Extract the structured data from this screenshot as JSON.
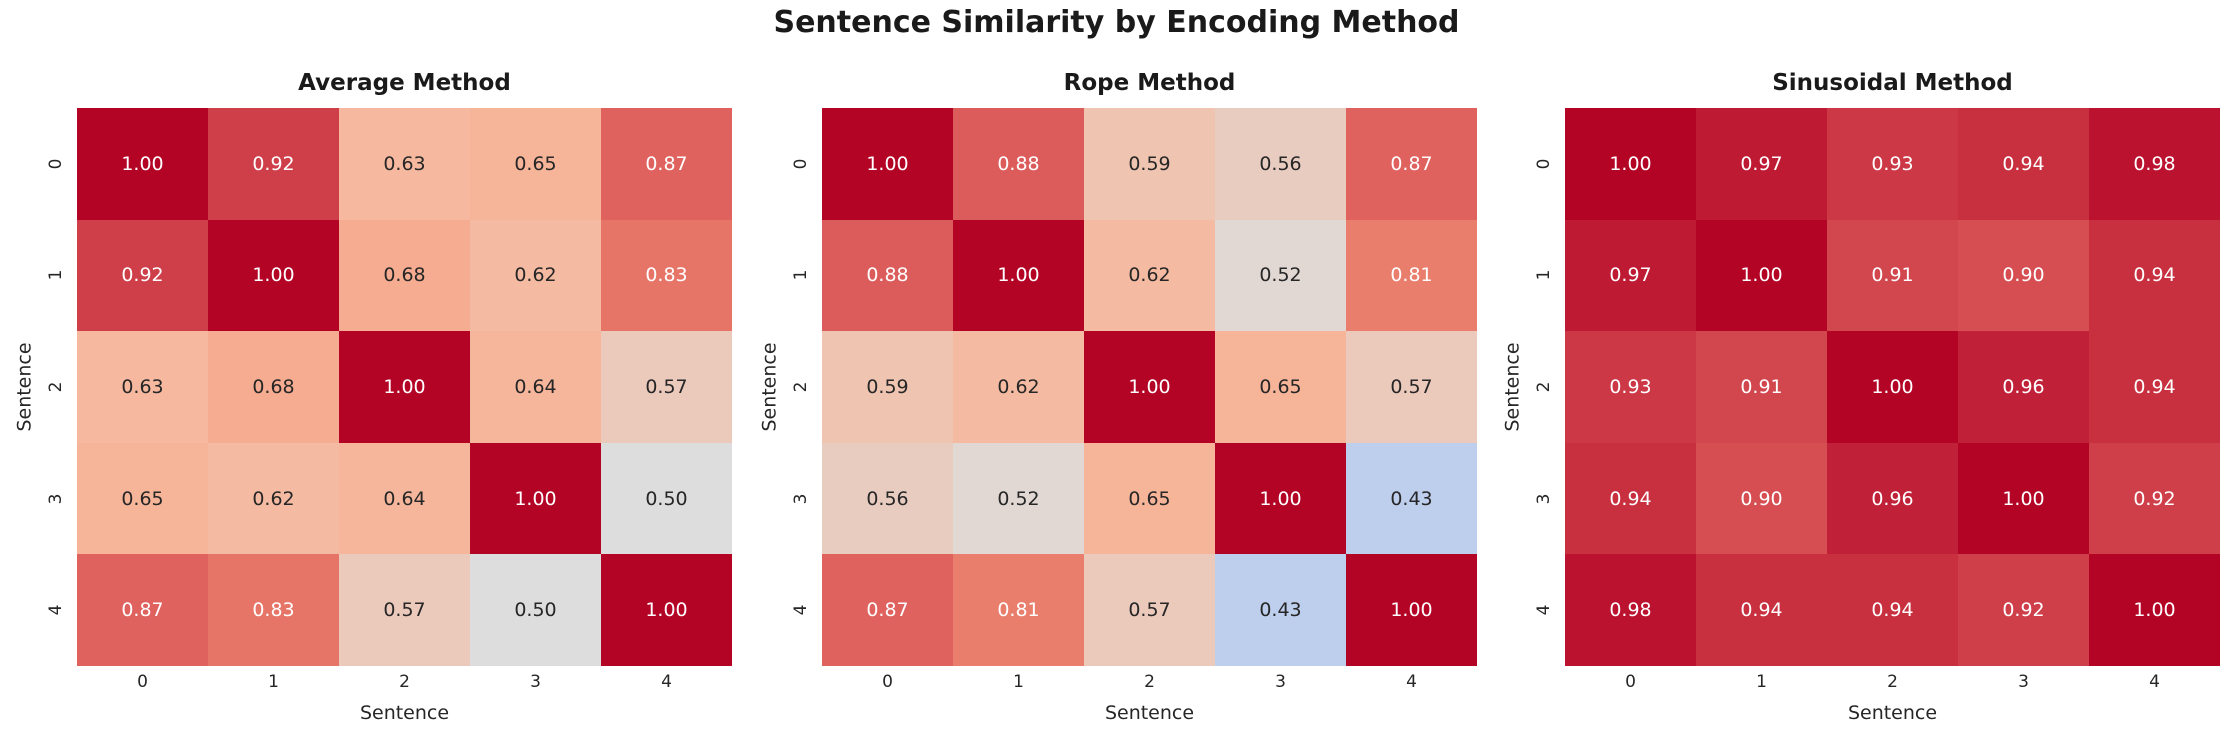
{
  "figure": {
    "title": "Sentence Similarity by Encoding Method",
    "background": "#ffffff",
    "title_color": "#1a1a1a",
    "tick_color": "#262626"
  },
  "colormap": {
    "name": "coolwarm",
    "vmin": 0.0,
    "vmax": 1.0,
    "anchors": [
      {
        "t": 0.0,
        "color": "#3B4CC0"
      },
      {
        "t": 0.125,
        "color": "#5171E2"
      },
      {
        "t": 0.25,
        "color": "#7A9EFA"
      },
      {
        "t": 0.375,
        "color": "#A6C2FA"
      },
      {
        "t": 0.5,
        "color": "#DDDDDD"
      },
      {
        "t": 0.625,
        "color": "#F6BAA0"
      },
      {
        "t": 0.75,
        "color": "#F49A7B"
      },
      {
        "t": 0.875,
        "color": "#DE605D"
      },
      {
        "t": 1.0,
        "color": "#B40426"
      }
    ],
    "annot_light_text": "#FFFFFF",
    "annot_dark_text": "#262626",
    "luminance_threshold": 150
  },
  "chart_data": [
    {
      "type": "heatmap",
      "title": "Average Method",
      "xlabel": "Sentence",
      "ylabel": "Sentence",
      "x_ticks": [
        "0",
        "1",
        "2",
        "3",
        "4"
      ],
      "y_ticks": [
        "0",
        "1",
        "2",
        "3",
        "4"
      ],
      "value_format": "0.00",
      "values": [
        [
          1.0,
          0.92,
          0.63,
          0.65,
          0.87
        ],
        [
          0.92,
          1.0,
          0.68,
          0.62,
          0.83
        ],
        [
          0.63,
          0.68,
          1.0,
          0.64,
          0.57
        ],
        [
          0.65,
          0.62,
          0.64,
          1.0,
          0.5
        ],
        [
          0.87,
          0.83,
          0.57,
          0.5,
          1.0
        ]
      ]
    },
    {
      "type": "heatmap",
      "title": "Rope Method",
      "xlabel": "Sentence",
      "ylabel": "Sentence",
      "x_ticks": [
        "0",
        "1",
        "2",
        "3",
        "4"
      ],
      "y_ticks": [
        "0",
        "1",
        "2",
        "3",
        "4"
      ],
      "value_format": "0.00",
      "values": [
        [
          1.0,
          0.88,
          0.59,
          0.56,
          0.87
        ],
        [
          0.88,
          1.0,
          0.62,
          0.52,
          0.81
        ],
        [
          0.59,
          0.62,
          1.0,
          0.65,
          0.57
        ],
        [
          0.56,
          0.52,
          0.65,
          1.0,
          0.43
        ],
        [
          0.87,
          0.81,
          0.57,
          0.43,
          1.0
        ]
      ]
    },
    {
      "type": "heatmap",
      "title": "Sinusoidal Method",
      "xlabel": "Sentence",
      "ylabel": "Sentence",
      "x_ticks": [
        "0",
        "1",
        "2",
        "3",
        "4"
      ],
      "y_ticks": [
        "0",
        "1",
        "2",
        "3",
        "4"
      ],
      "value_format": "0.00",
      "values": [
        [
          1.0,
          0.97,
          0.93,
          0.94,
          0.98
        ],
        [
          0.97,
          1.0,
          0.91,
          0.9,
          0.94
        ],
        [
          0.93,
          0.91,
          1.0,
          0.96,
          0.94
        ],
        [
          0.94,
          0.9,
          0.96,
          1.0,
          0.92
        ],
        [
          0.98,
          0.94,
          0.94,
          0.92,
          1.0
        ]
      ]
    }
  ]
}
